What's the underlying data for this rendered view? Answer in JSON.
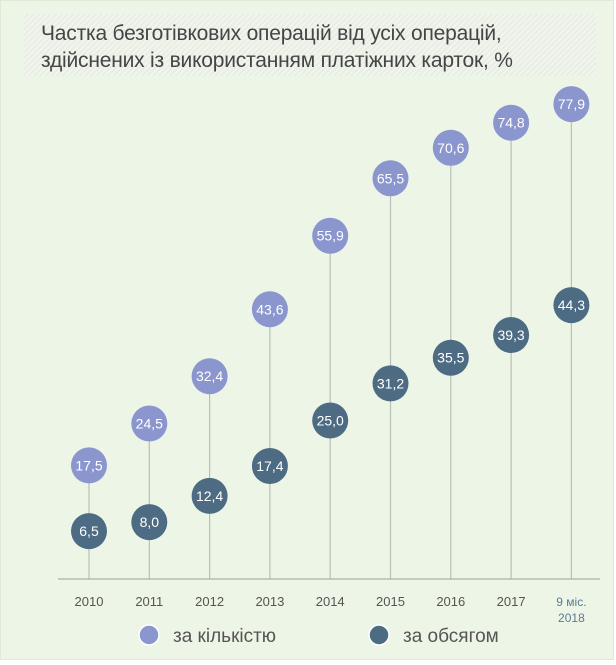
{
  "chart_data": {
    "type": "scatter",
    "title": "Частка безготівкових операцій від усіх операцій, здійснених із використанням платіжних карток, %",
    "categories": [
      "2010",
      "2011",
      "2012",
      "2013",
      "2014",
      "2015",
      "2016",
      "2017",
      "9 міс. 2018"
    ],
    "series": [
      {
        "name": "за кількістю",
        "color": "#8b96cf",
        "values": [
          17.5,
          24.5,
          32.4,
          43.6,
          55.9,
          65.5,
          70.6,
          74.8,
          77.9
        ],
        "labels": [
          "17,5",
          "24,5",
          "32,4",
          "43,6",
          "55,9",
          "65,5",
          "70,6",
          "74,8",
          "77,9"
        ]
      },
      {
        "name": "за обсягом",
        "color": "#4d6c84",
        "values": [
          6.5,
          8.0,
          12.4,
          17.4,
          25.0,
          31.2,
          35.5,
          39.3,
          44.3
        ],
        "labels": [
          "6,5",
          "8,0",
          "12,4",
          "17,4",
          "25,0",
          "31,2",
          "35,5",
          "39,3",
          "44,3"
        ]
      }
    ],
    "last_category_color": "#5b7c93",
    "grid": false,
    "legend_position": "bottom"
  }
}
